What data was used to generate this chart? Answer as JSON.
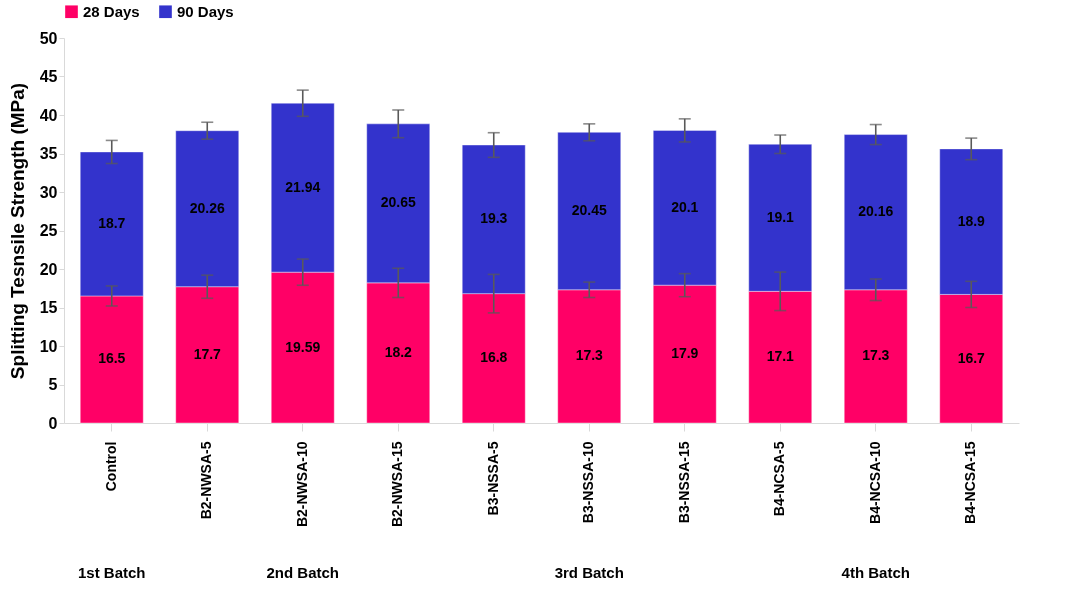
{
  "chart_data": {
    "type": "bar",
    "stacked": true,
    "ylabel": "Splitting Tesnsile Strength (MPa)",
    "categories": [
      "Control",
      "B2-NWSA-5",
      "B2-NWSA-10",
      "B2-NWSA-15",
      "B3-NSSA-5",
      "B3-NSSA-10",
      "B3-NSSA-15",
      "B4-NCSA-5",
      "B4-NCSA-10",
      "B4-NCSA-15"
    ],
    "series": [
      {
        "name": "28 Days",
        "color": "#ff0066",
        "values": [
          16.5,
          17.7,
          19.59,
          18.2,
          16.8,
          17.3,
          17.9,
          17.1,
          17.3,
          16.7
        ],
        "errors": [
          1.3,
          1.5,
          1.7,
          1.9,
          2.5,
          1.0,
          1.5,
          2.5,
          1.4,
          1.7
        ]
      },
      {
        "name": "90 Days",
        "color": "#3333cc",
        "values": [
          18.7,
          20.26,
          21.94,
          20.65,
          19.3,
          20.45,
          20.1,
          19.1,
          20.16,
          18.9
        ],
        "errors": [
          1.5,
          1.1,
          1.7,
          1.8,
          1.6,
          1.1,
          1.5,
          1.2,
          1.3,
          1.4
        ]
      }
    ],
    "data_labels": true,
    "ylim": [
      0,
      50
    ],
    "yticks": [
      0,
      5,
      10,
      15,
      20,
      25,
      30,
      35,
      40,
      45,
      50
    ],
    "grid": false,
    "legend": "top",
    "annotations": [
      "1st Batch",
      "2nd Batch",
      "3rd Batch",
      "4th Batch"
    ]
  }
}
